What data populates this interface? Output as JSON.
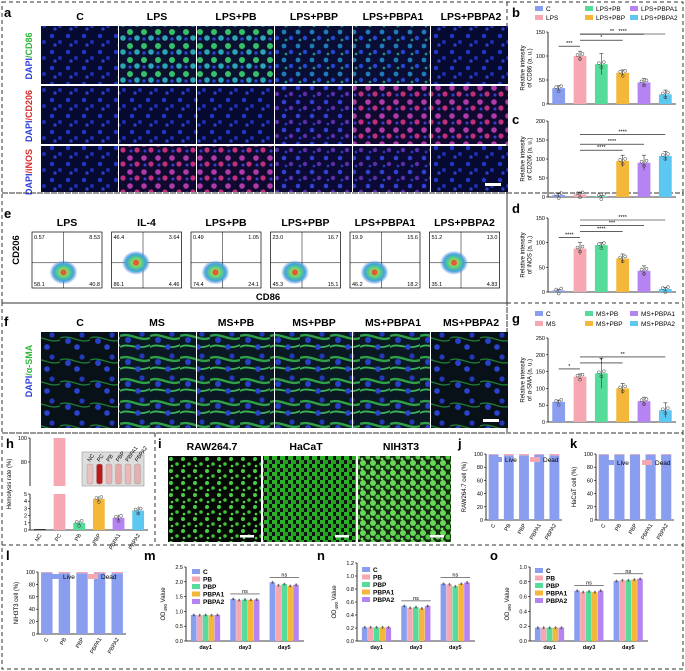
{
  "figure": {
    "panel_letters": [
      "a",
      "b",
      "c",
      "d",
      "e",
      "f",
      "g",
      "h",
      "i",
      "j",
      "k",
      "l",
      "m",
      "n",
      "o"
    ]
  },
  "panel_a": {
    "columns": [
      "C",
      "LPS",
      "LPS+PB",
      "LPS+PBP",
      "LPS+PBPA1",
      "LPS+PBPA2"
    ],
    "rows": [
      {
        "label": "DAPI/CD86",
        "c1": "DAPI",
        "c2": "/CD86",
        "color": "#3ad13a"
      },
      {
        "label": "DAPI/CD206",
        "c1": "DAPI",
        "c2": "/CD206",
        "color": "#e23a3a"
      },
      {
        "label": "DAPI/iNOS",
        "c1": "DAPI",
        "c2": "/iNOS",
        "color": "#e23a3a"
      }
    ]
  },
  "panel_e": {
    "columns": [
      "LPS",
      "IL-4",
      "LPS+PB",
      "LPS+PBP",
      "LPS+PBPA1",
      "LPS+PBPA2"
    ],
    "quadrants": [
      [
        "0.57",
        "8.53",
        "58.1",
        "40.8"
      ],
      [
        "46.4",
        "3.64",
        "86.1",
        "4.46"
      ],
      [
        "0.49",
        "1.05",
        "74.4",
        "24.1"
      ],
      [
        "23.0",
        "16.7",
        "45.3",
        "15.1"
      ],
      [
        "19.9",
        "15.6",
        "46.2",
        "18.2"
      ],
      [
        "51.2",
        "13.0",
        "35.1",
        "4.83"
      ]
    ],
    "ylabel": "CD206",
    "xlabel": "CD86"
  },
  "panel_f": {
    "columns": [
      "C",
      "MS",
      "MS+PB",
      "MS+PBP",
      "MS+PBPA1",
      "MS+PBPA2"
    ],
    "row_label_1": "DAPI",
    "row_label_2": "/α-SMA"
  },
  "panel_i": {
    "columns": [
      "RAW264.7",
      "HaCaT",
      "NIH3T3"
    ]
  },
  "panel_h": {
    "photo_tubes": [
      "NC",
      "PC",
      "PB",
      "PBP",
      "PBPA1",
      "PBPA2"
    ]
  },
  "chart_data": [
    {
      "id": "b",
      "type": "bar",
      "categories": [
        "C",
        "LPS",
        "LPS+PB",
        "LPS+PBP",
        "LPS+PBPA1",
        "LPS+PBPA2"
      ],
      "values": [
        33,
        100,
        83,
        65,
        45,
        20
      ],
      "errors": [
        5,
        10,
        22,
        6,
        8,
        9
      ],
      "ylabel": "Relative intensity of CD86 (a. u.)",
      "ylim": [
        0,
        150
      ],
      "yticks": [
        0,
        50,
        100,
        150
      ],
      "significance": [
        [
          "C",
          "LPS",
          "***"
        ],
        [
          "LPS",
          "LPS+PBP",
          "*"
        ],
        [
          "LPS",
          "LPS+PBPA1",
          "**"
        ],
        [
          "LPS",
          "LPS+PBPA2",
          "****"
        ]
      ],
      "legend": [
        "C",
        "LPS",
        "LPS+PB",
        "LPS+PBP",
        "LPS+PBPA1",
        "LPS+PBPA2"
      ]
    },
    {
      "id": "c",
      "type": "bar",
      "categories": [
        "C",
        "LPS",
        "LPS+PB",
        "LPS+PBP",
        "LPS+PBPA1",
        "LPS+PBPA2"
      ],
      "values": [
        5,
        7,
        2,
        95,
        90,
        108
      ],
      "errors": [
        4,
        6,
        2,
        15,
        20,
        12
      ],
      "ylabel": "Relative intensity of CD206 (a. u.)",
      "ylim": [
        0,
        200
      ],
      "yticks": [
        0,
        50,
        100,
        150,
        200
      ],
      "significance": [
        [
          "LPS",
          "LPS+PBP",
          "****"
        ],
        [
          "LPS",
          "LPS+PBPA1",
          "****"
        ],
        [
          "LPS",
          "LPS+PBPA2",
          "****"
        ]
      ]
    },
    {
      "id": "d",
      "type": "bar",
      "categories": [
        "C",
        "LPS",
        "LPS+PB",
        "LPS+PBP",
        "LPS+PBPA1",
        "LPS+PBPA2"
      ],
      "values": [
        3,
        88,
        95,
        68,
        43,
        6
      ],
      "errors": [
        2,
        12,
        5,
        9,
        10,
        3
      ],
      "ylabel": "Relative intensity of iNOS (a. u.)",
      "ylim": [
        0,
        150
      ],
      "yticks": [
        0,
        50,
        100,
        150
      ],
      "significance": [
        [
          "C",
          "LPS",
          "****"
        ],
        [
          "LPS",
          "LPS+PBP",
          "****"
        ],
        [
          "LPS",
          "LPS+PBPA1",
          "***"
        ],
        [
          "LPS",
          "LPS+PBPA2",
          "****"
        ]
      ]
    },
    {
      "id": "g",
      "type": "bar",
      "categories": [
        "C",
        "MS",
        "MS+PB",
        "MS+PBP",
        "MS+PBPA1",
        "MS+PBPA2"
      ],
      "values": [
        60,
        135,
        145,
        100,
        62,
        35
      ],
      "errors": [
        5,
        8,
        45,
        15,
        12,
        22
      ],
      "ylabel": "Relative intensity of α-SMA (a. u.)",
      "ylim": [
        0,
        250
      ],
      "yticks": [
        0,
        50,
        100,
        150,
        200,
        250
      ],
      "significance": [
        [
          "C",
          "MS",
          "*"
        ],
        [
          "MS",
          "MS+PBP",
          "*"
        ],
        [
          "MS",
          "MS+PBPA2",
          "**"
        ]
      ],
      "legend": [
        "C",
        "MS",
        "MS+PB",
        "MS+PBP",
        "MS+PBPA1",
        "MS+PBPA2"
      ]
    },
    {
      "id": "h",
      "type": "bar",
      "categories": [
        "NC",
        "PC",
        "PB",
        "PBP",
        "PBPA1",
        "PBPA2"
      ],
      "values": [
        0,
        100,
        1.0,
        4.3,
        1.7,
        2.7
      ],
      "errors": [
        0,
        0,
        0.3,
        0.4,
        0.4,
        0.6
      ],
      "ylabel": "Hemolysis rate (%)",
      "yticks_low": [
        0,
        1,
        2,
        3,
        4,
        5
      ],
      "yticks_high": [
        80,
        100
      ]
    },
    {
      "id": "j",
      "type": "bar",
      "categories": [
        "C",
        "PB",
        "PBP",
        "PBPA1",
        "PBPA2"
      ],
      "live": [
        99,
        98,
        98,
        99,
        98
      ],
      "dead": [
        1,
        2,
        2,
        1,
        2
      ],
      "ylabel": "RAW264.7 cell (%)",
      "ylim": [
        0,
        100
      ],
      "yticks": [
        0,
        20,
        40,
        60,
        80,
        100
      ],
      "legend": [
        "Live",
        "Dead"
      ]
    },
    {
      "id": "k",
      "type": "bar",
      "categories": [
        "C",
        "PB",
        "PBP",
        "PBPA1",
        "PBPA2"
      ],
      "live": [
        99,
        99,
        99,
        99,
        99
      ],
      "dead": [
        1,
        1,
        1,
        1,
        1
      ],
      "ylabel": "HaCaT cell (%)",
      "ylim": [
        0,
        100
      ],
      "yticks": [
        0,
        20,
        40,
        60,
        80,
        100
      ],
      "legend": [
        "Live",
        "Dead"
      ]
    },
    {
      "id": "l",
      "type": "bar",
      "categories": [
        "C",
        "PB",
        "PBP",
        "PBPA1",
        "PBPA2"
      ],
      "live": [
        99,
        98,
        98,
        98,
        98
      ],
      "dead": [
        1,
        2,
        2,
        2,
        2
      ],
      "ylabel": "NIH3T3 cell (%)",
      "ylim": [
        0,
        100
      ],
      "yticks": [
        0,
        20,
        40,
        60,
        80,
        100
      ],
      "legend": [
        "Live",
        "Dead"
      ]
    },
    {
      "id": "m",
      "type": "bar",
      "categories": [
        "day1",
        "day3",
        "day5"
      ],
      "series": [
        {
          "name": "C",
          "values": [
            0.88,
            1.42,
            1.98
          ]
        },
        {
          "name": "PB",
          "values": [
            0.87,
            1.38,
            1.88
          ]
        },
        {
          "name": "PBP",
          "values": [
            0.88,
            1.4,
            1.92
          ]
        },
        {
          "name": "PBPA1",
          "values": [
            0.87,
            1.39,
            1.86
          ]
        },
        {
          "name": "PBPA2",
          "values": [
            0.88,
            1.4,
            1.9
          ]
        }
      ],
      "ylabel": "OD490 Value",
      "ylim": [
        0,
        2.5
      ],
      "yticks": [
        0.0,
        0.5,
        1.0,
        1.5,
        2.0,
        2.5
      ],
      "ns": [
        "day3",
        "day5"
      ]
    },
    {
      "id": "n",
      "type": "bar",
      "categories": [
        "day1",
        "day3",
        "day5"
      ],
      "series": [
        {
          "name": "C",
          "values": [
            0.21,
            0.54,
            0.88
          ]
        },
        {
          "name": "PB",
          "values": [
            0.21,
            0.51,
            0.87
          ]
        },
        {
          "name": "PBP",
          "values": [
            0.21,
            0.52,
            0.84
          ]
        },
        {
          "name": "PBPA1",
          "values": [
            0.21,
            0.5,
            0.88
          ]
        },
        {
          "name": "PBPA2",
          "values": [
            0.21,
            0.54,
            0.9
          ]
        }
      ],
      "ylabel": "OD490 Value",
      "ylim": [
        0,
        1.2
      ],
      "yticks": [
        0.0,
        0.2,
        0.4,
        0.6,
        0.8,
        1.0,
        1.2
      ],
      "ns": [
        "day3",
        "day5"
      ]
    },
    {
      "id": "o",
      "type": "bar",
      "categories": [
        "day1",
        "day3",
        "day5"
      ],
      "series": [
        {
          "name": "C",
          "values": [
            0.18,
            0.68,
            0.81
          ]
        },
        {
          "name": "PB",
          "values": [
            0.18,
            0.66,
            0.82
          ]
        },
        {
          "name": "PBP",
          "values": [
            0.18,
            0.67,
            0.82
          ]
        },
        {
          "name": "PBPA1",
          "values": [
            0.18,
            0.66,
            0.83
          ]
        },
        {
          "name": "PBPA2",
          "values": [
            0.18,
            0.68,
            0.84
          ]
        }
      ],
      "ylabel": "OD490 Value",
      "ylim": [
        0,
        1.0
      ],
      "yticks": [
        0.0,
        0.2,
        0.4,
        0.6,
        0.8,
        1.0
      ],
      "ns": [
        "day3",
        "day5"
      ]
    }
  ],
  "colors": {
    "six": [
      "#8a9ef0",
      "#f6a8b2",
      "#55dc9b",
      "#f5b73a",
      "#b683f2",
      "#5cc8f2"
    ],
    "five": [
      "#8a9ef0",
      "#f6a8b2",
      "#55dc9b",
      "#f5b73a",
      "#b683f2"
    ],
    "live": "#8a9ef0",
    "dead": "#f6a8b2"
  }
}
